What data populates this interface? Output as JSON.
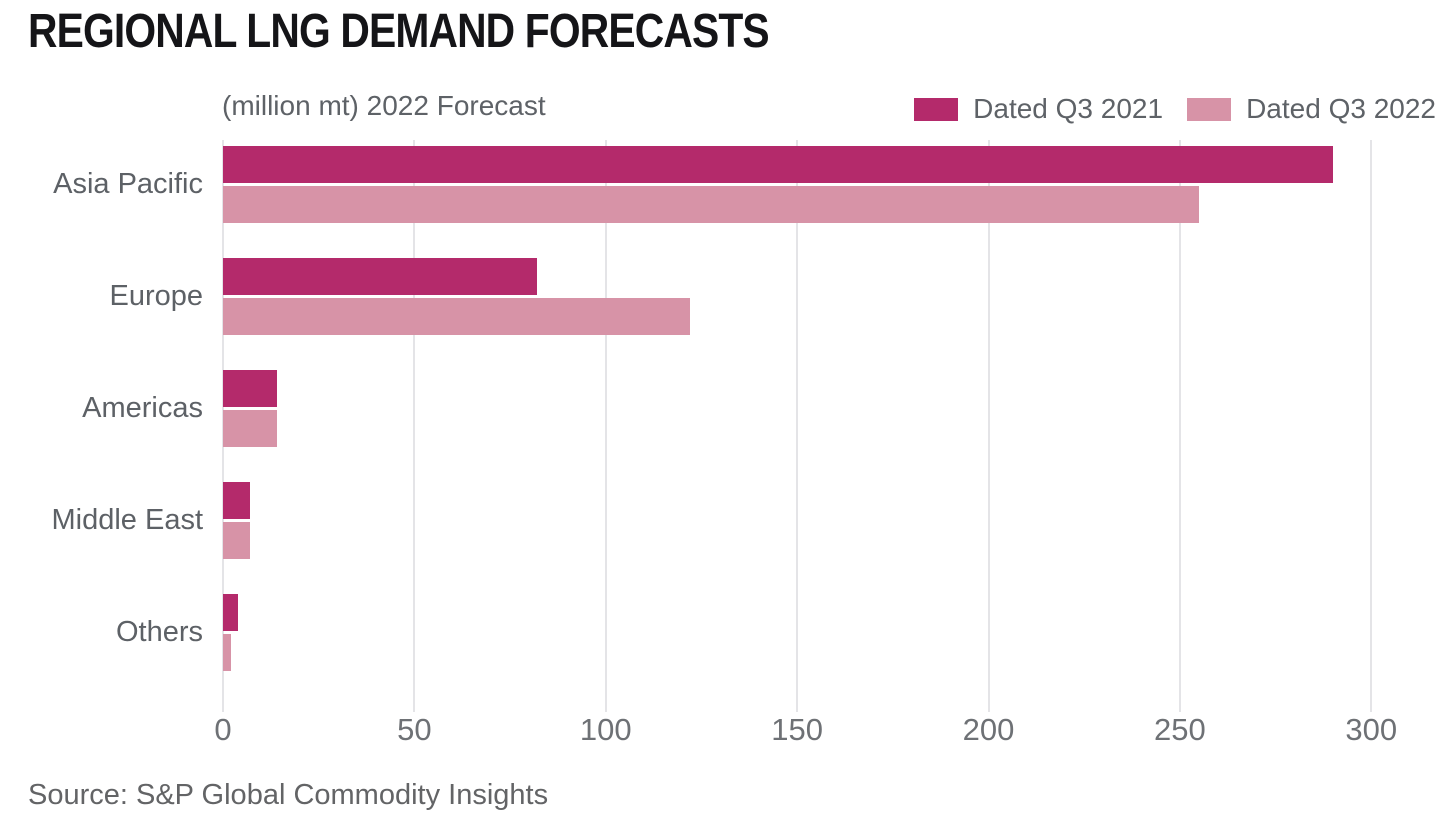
{
  "chart_data": {
    "type": "bar",
    "orientation": "horizontal",
    "title": "REGIONAL LNG DEMAND FORECASTS",
    "subtitle": "(million mt) 2022 Forecast",
    "categories": [
      "Asia Pacific",
      "Europe",
      "Americas",
      "Middle East",
      "Others"
    ],
    "series": [
      {
        "name": "Dated Q3 2021",
        "color": "#b42a6b",
        "values": [
          290,
          82,
          14,
          7,
          4
        ]
      },
      {
        "name": "Dated Q3 2022",
        "color": "#d793a7",
        "values": [
          255,
          122,
          14,
          7,
          2
        ]
      }
    ],
    "xticks": [
      0,
      50,
      100,
      150,
      200,
      250,
      300
    ],
    "xlim": [
      0,
      319
    ],
    "grid": true,
    "legend_position": "top-right",
    "source": "Source: S&P Global Commodity Insights"
  },
  "colors": {
    "grid": "#e4e4e7",
    "title_text": "#151518",
    "muted_text": "#5e6267",
    "tick_text": "#6e7175"
  }
}
